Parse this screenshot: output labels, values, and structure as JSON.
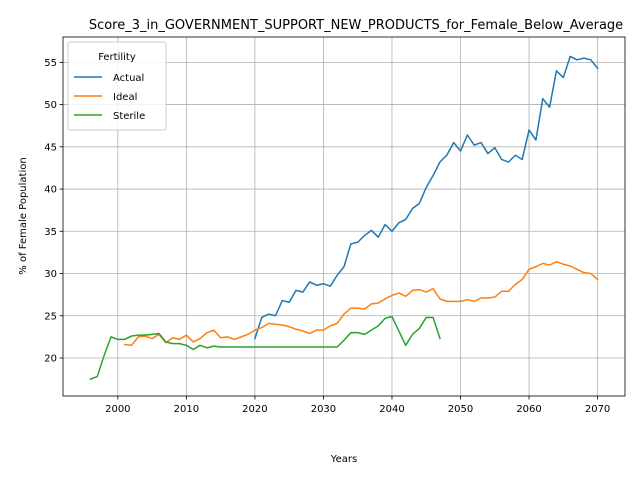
{
  "chart_data": {
    "type": "line",
    "title": "Score_3_in_GOVERNMENT_SUPPORT_NEW_PRODUCTS_for_Female_Below_Average",
    "xlabel": "Years",
    "ylabel": "% of Female Population",
    "xlim": [
      1992,
      2074
    ],
    "ylim": [
      15.5,
      58.0
    ],
    "xticks": [
      2000,
      2010,
      2020,
      2030,
      2040,
      2050,
      2060,
      2070
    ],
    "yticks": [
      20,
      25,
      30,
      35,
      40,
      45,
      50,
      55
    ],
    "grid": true,
    "legend": {
      "title": "Fertility",
      "placement": "top-left"
    },
    "series": [
      {
        "name": "Actual",
        "color": "#1f77b4",
        "x": [
          2020,
          2021,
          2022,
          2023,
          2024,
          2025,
          2026,
          2027,
          2028,
          2029,
          2030,
          2031,
          2032,
          2033,
          2034,
          2035,
          2036,
          2037,
          2038,
          2039,
          2040,
          2041,
          2042,
          2043,
          2044,
          2045,
          2046,
          2047,
          2048,
          2049,
          2050,
          2051,
          2052,
          2053,
          2054,
          2055,
          2056,
          2057,
          2058,
          2059,
          2060,
          2061,
          2062,
          2063,
          2064,
          2065,
          2066,
          2067,
          2068,
          2069,
          2070
        ],
        "values": [
          22.3,
          24.8,
          25.2,
          25.0,
          26.8,
          26.6,
          28.0,
          27.8,
          29.0,
          28.6,
          28.8,
          28.5,
          29.8,
          30.8,
          33.5,
          33.7,
          34.5,
          35.1,
          34.3,
          35.8,
          35.0,
          36.0,
          36.4,
          37.7,
          38.3,
          40.2,
          41.6,
          43.2,
          44.0,
          45.5,
          44.5,
          46.4,
          45.2,
          45.5,
          44.2,
          44.9,
          43.5,
          43.2,
          44.0,
          43.5,
          47.0,
          45.8,
          50.7,
          49.7,
          54.0,
          53.2,
          55.7,
          55.3,
          55.5,
          55.3,
          54.3
        ]
      },
      {
        "name": "Ideal",
        "color": "#ff7f0e",
        "x": [
          2001,
          2002,
          2003,
          2004,
          2005,
          2006,
          2007,
          2008,
          2009,
          2010,
          2011,
          2012,
          2013,
          2014,
          2015,
          2016,
          2017,
          2018,
          2019,
          2020,
          2021,
          2022,
          2023,
          2024,
          2025,
          2026,
          2027,
          2028,
          2029,
          2030,
          2031,
          2032,
          2033,
          2034,
          2035,
          2036,
          2037,
          2038,
          2039,
          2040,
          2041,
          2042,
          2043,
          2044,
          2045,
          2046,
          2047,
          2048,
          2049,
          2050,
          2051,
          2052,
          2053,
          2054,
          2055,
          2056,
          2057,
          2058,
          2059,
          2060,
          2061,
          2062,
          2063,
          2064,
          2065,
          2066,
          2067,
          2068,
          2069,
          2070
        ],
        "values": [
          21.6,
          21.5,
          22.5,
          22.6,
          22.3,
          22.8,
          21.8,
          22.4,
          22.2,
          22.7,
          21.9,
          22.3,
          23.0,
          23.3,
          22.4,
          22.5,
          22.2,
          22.5,
          22.8,
          23.3,
          23.6,
          24.1,
          24.0,
          23.9,
          23.7,
          23.4,
          23.2,
          22.9,
          23.3,
          23.3,
          23.8,
          24.1,
          25.2,
          25.9,
          25.9,
          25.8,
          26.4,
          26.5,
          27.0,
          27.4,
          27.7,
          27.3,
          28.0,
          28.1,
          27.8,
          28.2,
          27.0,
          26.7,
          26.7,
          26.7,
          26.9,
          26.7,
          27.1,
          27.1,
          27.2,
          27.9,
          27.9,
          28.7,
          29.3,
          30.5,
          30.8,
          31.2,
          31.0,
          31.4,
          31.1,
          30.9,
          30.5,
          30.1,
          30.0,
          29.3
        ]
      },
      {
        "name": "Sterile",
        "color": "#2ca02c",
        "x": [
          1996,
          1997,
          1998,
          1999,
          2000,
          2001,
          2002,
          2003,
          2004,
          2005,
          2006,
          2007,
          2008,
          2009,
          2010,
          2011,
          2012,
          2013,
          2014,
          2015,
          2016,
          2017,
          2018,
          2019,
          2020,
          2021,
          2022,
          2023,
          2024,
          2025,
          2026,
          2027,
          2028,
          2029,
          2030,
          2031,
          2032,
          2033,
          2034,
          2035,
          2036,
          2037,
          2038,
          2039,
          2040,
          2041,
          2042,
          2043,
          2044,
          2045,
          2046,
          2047
        ],
        "values": [
          17.5,
          17.8,
          20.3,
          22.5,
          22.2,
          22.2,
          22.6,
          22.7,
          22.7,
          22.8,
          22.9,
          21.9,
          21.7,
          21.7,
          21.5,
          21.0,
          21.5,
          21.2,
          21.4,
          21.3,
          21.3,
          21.3,
          21.3,
          21.3,
          21.3,
          21.3,
          21.3,
          21.3,
          21.3,
          21.3,
          21.3,
          21.3,
          21.3,
          21.3,
          21.3,
          21.3,
          21.3,
          22.1,
          23.0,
          23.0,
          22.8,
          23.3,
          23.8,
          24.7,
          24.9,
          23.2,
          21.5,
          22.8,
          23.5,
          24.8,
          24.8,
          22.3
        ]
      }
    ]
  }
}
